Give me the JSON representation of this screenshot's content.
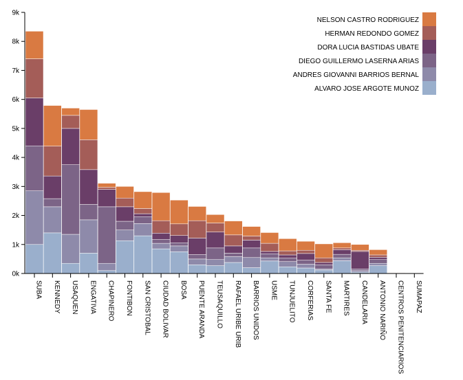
{
  "chart_data": {
    "type": "bar",
    "stacked": true,
    "categories": [
      "SUBA",
      "KENNEDY",
      "USAQUEN",
      "ENGATIVA",
      "CHAPINERO",
      "FONTIBON",
      "SAN CRISTOBAL",
      "CIUDAD BOLIVAR",
      "BOSA",
      "PUENTE ARANDA",
      "TEUSAQUILLO",
      "RAFAEL URIBE URIB",
      "BARRIOS UNIDOS",
      "USME",
      "TUNJUELITO",
      "CORFERIAS",
      "SANTA FE",
      "MARTIRES",
      "CANDELARIA",
      "ANTONIO NARIÑO",
      "CENTROS PENITENCIARIOS",
      "SUMAPAZ"
    ],
    "series": [
      {
        "name": "ALVARO JOSE ARGOTE MUNOZ",
        "color": "#9aafcc",
        "values": [
          1000,
          1400,
          350,
          700,
          100,
          1130,
          1300,
          850,
          750,
          300,
          270,
          380,
          200,
          430,
          230,
          190,
          120,
          440,
          50,
          270,
          5,
          0
        ]
      },
      {
        "name": "ANDRES GIOVANNI BARRIOS BERNAL",
        "color": "#8e8aaa",
        "values": [
          1850,
          900,
          1000,
          1150,
          250,
          370,
          420,
          190,
          200,
          200,
          210,
          200,
          350,
          110,
          180,
          130,
          40,
          100,
          50,
          80,
          5,
          0
        ]
      },
      {
        "name": "DIEGO GUILLERMO LASERNA ARIAS",
        "color": "#7c6487",
        "values": [
          1550,
          280,
          2400,
          530,
          1950,
          300,
          240,
          130,
          110,
          150,
          400,
          120,
          330,
          140,
          120,
          140,
          140,
          120,
          60,
          130,
          5,
          0
        ]
      },
      {
        "name": "DORA LUCIA BASTIDAS UBATE",
        "color": "#6a3e68",
        "values": [
          1650,
          780,
          1250,
          1200,
          600,
          500,
          100,
          220,
          250,
          570,
          550,
          250,
          270,
          80,
          110,
          230,
          80,
          160,
          600,
          80,
          5,
          0
        ]
      },
      {
        "name": "HERMAN REDONDO GOMEZ",
        "color": "#a45d58",
        "values": [
          1350,
          1030,
          450,
          1030,
          70,
          300,
          180,
          430,
          400,
          600,
          310,
          380,
          140,
          280,
          140,
          110,
          160,
          60,
          40,
          80,
          3,
          0
        ]
      },
      {
        "name": "NELSON CASTRO RODRIGUEZ",
        "color": "#d97a42",
        "values": [
          950,
          1400,
          250,
          1040,
          140,
          400,
          580,
          970,
          820,
          490,
          290,
          480,
          330,
          370,
          420,
          310,
          480,
          180,
          200,
          180,
          2,
          0
        ]
      }
    ],
    "ylim": [
      0,
      9000
    ],
    "yticks": [
      "0k",
      "1k",
      "2k",
      "3k",
      "4k",
      "5k",
      "6k",
      "7k",
      "8k",
      "9k"
    ],
    "grid": false,
    "legend_position": "top-right"
  }
}
